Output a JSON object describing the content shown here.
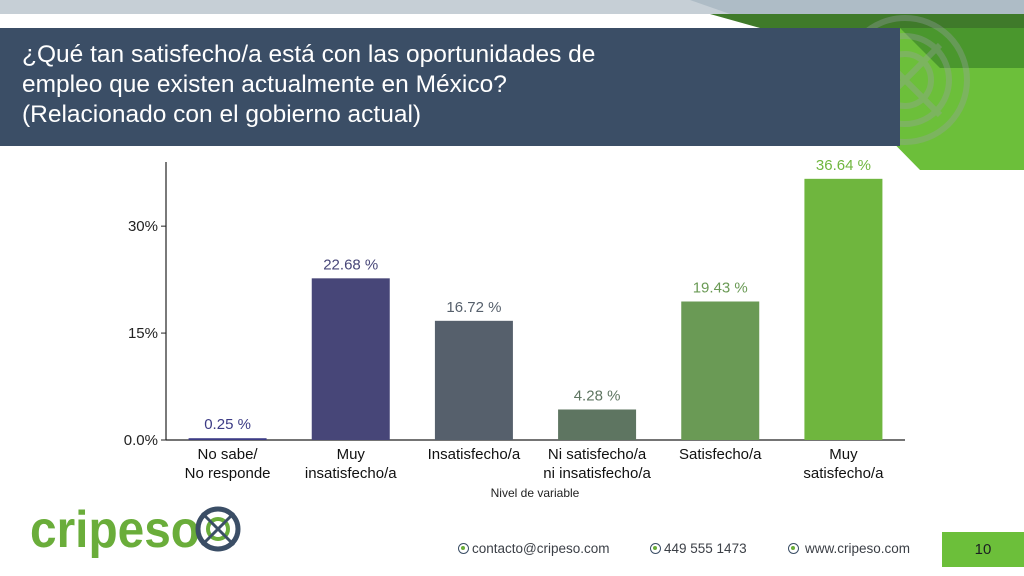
{
  "slide": {
    "title_lines": [
      "¿Qué tan satisfecho/a está con las oportunidades de",
      "empleo que existen actualmente en México?",
      "(Relacionado con el gobierno actual)"
    ],
    "page_number": "10"
  },
  "brand": {
    "logo_text": "cripeso"
  },
  "footer": {
    "email": "contacto@cripeso.com",
    "phone": "449 555 1473",
    "website": "www.cripeso.com"
  },
  "colors": {
    "header_band": "#3b4e66",
    "accent_green": "#6cbf3a",
    "dark_green": "#3f8a2a"
  },
  "chart_data": {
    "type": "bar",
    "title": "",
    "xlabel": "Nivel de variable",
    "ylabel": "",
    "ylim": [
      0,
      39
    ],
    "yticks": [
      0,
      15,
      30
    ],
    "ytick_labels": [
      "0.0%",
      "15%",
      "30%"
    ],
    "categories": [
      [
        "No sabe/",
        "No responde"
      ],
      [
        "Muy",
        "insatisfecho/a"
      ],
      [
        "Insatisfecho/a"
      ],
      [
        "Ni satisfecho/a",
        "ni insatisfecho/a"
      ],
      [
        "Satisfecho/a"
      ],
      [
        "Muy",
        "satisfecho/a"
      ]
    ],
    "values": [
      0.25,
      22.68,
      16.72,
      4.28,
      19.43,
      36.64
    ],
    "value_labels": [
      "0.25 %",
      "22.68 %",
      "16.72 %",
      "4.28 %",
      "19.43 %",
      "36.64 %"
    ],
    "bar_colors": [
      "#3c3b85",
      "#474678",
      "#56606c",
      "#5e7561",
      "#6a9a55",
      "#6fb63e"
    ],
    "label_colors": [
      "#3c3b85",
      "#474678",
      "#56606c",
      "#5e7561",
      "#6a9a55",
      "#6fb63e"
    ],
    "grid": false,
    "legend": "none"
  }
}
